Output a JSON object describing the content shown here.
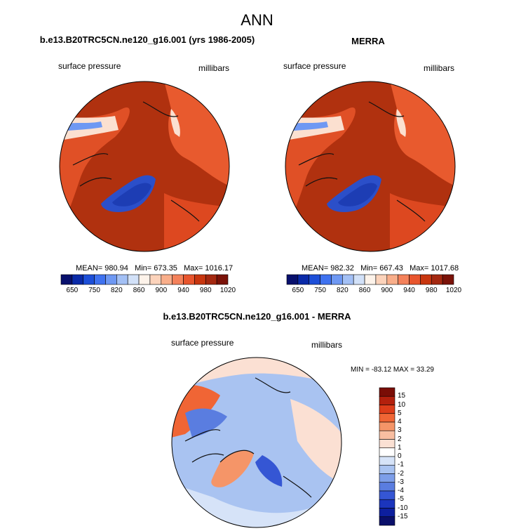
{
  "main_title": "ANN",
  "colors": {
    "ocean_dark": "#a62b0c",
    "land_mid": "#d9421a",
    "land_light": "#f0673a",
    "greenland_blue": "#2b4fc9",
    "diff_bg": "#a9c6f0",
    "coast": "#111111"
  },
  "chart_data": [
    {
      "type": "heatmap",
      "projection": "polar-stereographic north",
      "title": "b.e13.B20TRC5CN.ne120_g16.001 (yrs 1986-2005)",
      "field_label": "surface pressure",
      "units_label": "millibars",
      "stats": {
        "mean": "980.94",
        "min": "673.35",
        "max": "1016.17"
      },
      "stats_text": {
        "mean_label": "MEAN= 980.94",
        "min_label": "Min= 673.35",
        "max_label": "Max= 1016.17"
      },
      "colorbar": {
        "colors": [
          "#08106d",
          "#0a2aa8",
          "#1d4fd8",
          "#3f72f0",
          "#6e98f3",
          "#a3c0f5",
          "#d2e1f8",
          "#fdf3ea",
          "#fcd3bb",
          "#f9ae8a",
          "#f4815a",
          "#e8552d",
          "#c8360f",
          "#a42810",
          "#7a1208"
        ],
        "tick_labels": [
          "650",
          "750",
          "820",
          "860",
          "900",
          "940",
          "980",
          "1020"
        ]
      }
    },
    {
      "type": "heatmap",
      "projection": "polar-stereographic north",
      "title": "MERRA",
      "field_label": "surface pressure",
      "units_label": "millibars",
      "stats": {
        "mean": "982.32",
        "min": "667.43",
        "max": "1017.68"
      },
      "stats_text": {
        "mean_label": "MEAN= 982.32",
        "min_label": "Min= 667.43",
        "max_label": "Max= 1017.68"
      },
      "colorbar": {
        "colors": [
          "#08106d",
          "#0a2aa8",
          "#1d4fd8",
          "#3f72f0",
          "#6e98f3",
          "#a3c0f5",
          "#d2e1f8",
          "#fdf3ea",
          "#fcd3bb",
          "#f9ae8a",
          "#f4815a",
          "#e8552d",
          "#c8360f",
          "#a42810",
          "#7a1208"
        ],
        "tick_labels": [
          "650",
          "750",
          "820",
          "860",
          "900",
          "940",
          "980",
          "1020"
        ]
      }
    },
    {
      "type": "heatmap",
      "projection": "polar-stereographic north",
      "title": "b.e13.B20TRC5CN.ne120_g16.001 - MERRA",
      "field_label": "surface pressure",
      "units_label": "millibars",
      "stats": {
        "min": "-83.12",
        "max": "33.29"
      },
      "stats_text": {
        "range_label": "MIN = -83.12 MAX =  33.29"
      },
      "colorbar": {
        "colors": [
          "#7a0d06",
          "#b3200d",
          "#dd3d1a",
          "#f06535",
          "#f59568",
          "#f8bea1",
          "#fbe0d3",
          "#ffffff",
          "#d6e3f8",
          "#a9c3f1",
          "#7d9ee9",
          "#5a7de0",
          "#3556d4",
          "#1b35bd",
          "#0d1f9e",
          "#0a0f6a"
        ],
        "tick_labels": [
          "15",
          "10",
          "5",
          "4",
          "3",
          "2",
          "1",
          "0",
          "-1",
          "-2",
          "-3",
          "-4",
          "-5",
          "-10",
          "-15"
        ]
      }
    }
  ]
}
